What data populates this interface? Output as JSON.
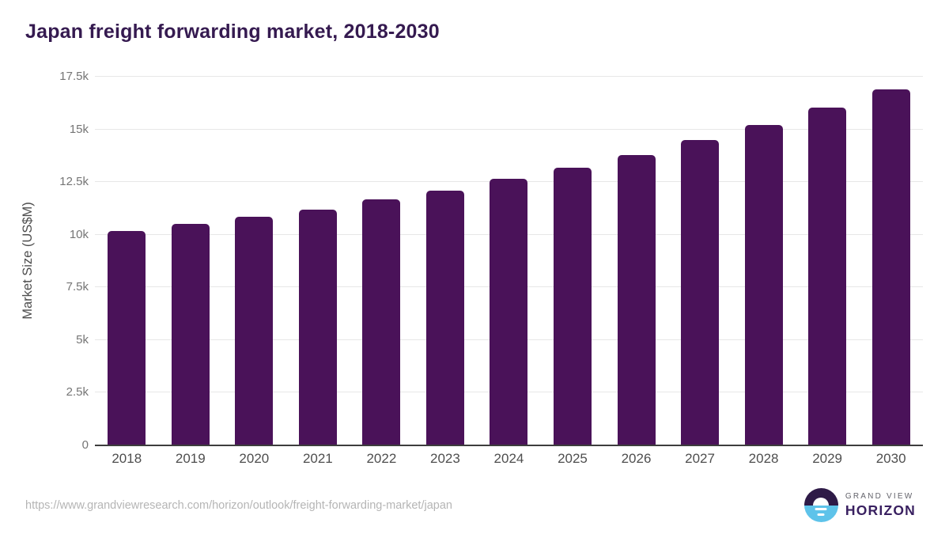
{
  "header": {
    "title": "Japan freight forwarding market, 2018-2030"
  },
  "chart_data": {
    "type": "bar",
    "title": "Japan freight forwarding market, 2018-2030",
    "categories": [
      "2018",
      "2019",
      "2020",
      "2021",
      "2022",
      "2023",
      "2024",
      "2025",
      "2026",
      "2027",
      "2028",
      "2029",
      "2030"
    ],
    "values": [
      10150,
      10480,
      10820,
      11150,
      11640,
      12060,
      12620,
      13130,
      13760,
      14440,
      15170,
      16010,
      16870
    ],
    "series_name": "Market Size",
    "xlabel": "",
    "ylabel": "Market Size (US$M)",
    "ylim": [
      0,
      17500
    ],
    "yticks": [
      {
        "value": 17500,
        "label": "17.5k"
      },
      {
        "value": 15000,
        "label": "15k"
      },
      {
        "value": 12500,
        "label": "12.5k"
      },
      {
        "value": 10000,
        "label": "10k"
      },
      {
        "value": 7500,
        "label": "7.5k"
      },
      {
        "value": 5000,
        "label": "5k"
      },
      {
        "value": 2500,
        "label": "2.5k"
      },
      {
        "value": 0,
        "label": "0"
      }
    ],
    "grid": true,
    "legend_position": "none",
    "bar_color": "#4a1259",
    "gridline_color": "#e7e7e7",
    "axis_line_color": "#3d3d3d"
  },
  "footer": {
    "source_url": "https://www.grandviewresearch.com/horizon/outlook/freight-forwarding-market/japan",
    "logo": {
      "line1": "GRAND VIEW",
      "line2": "HORIZON",
      "mark_top_color": "#2e1a47",
      "mark_bottom_color": "#5ec3ea"
    }
  }
}
